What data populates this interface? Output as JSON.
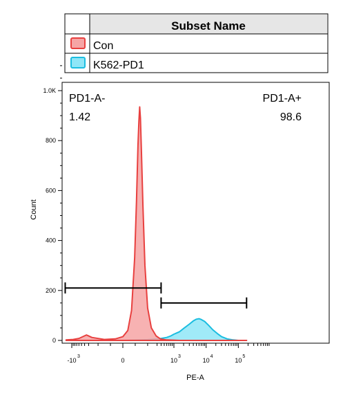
{
  "legend": {
    "header": "Subset Name",
    "items": [
      {
        "label": "Con",
        "stroke": "#e8403f",
        "fill": "#f6a5a5"
      },
      {
        "label": "K562-PD1",
        "stroke": "#1bbde0",
        "fill": "#8fe6f7"
      }
    ]
  },
  "gates": {
    "left": {
      "name": "PD1-A-",
      "value": "1.42"
    },
    "right": {
      "name": "PD1-A+",
      "value": "98.6"
    }
  },
  "chart_data": {
    "type": "area",
    "xlabel": "PE-A",
    "ylabel": "Count",
    "ylim": [
      0,
      1100
    ],
    "y_ticks": [
      {
        "value": 0,
        "label": "0"
      },
      {
        "value": 200,
        "label": "200"
      },
      {
        "value": 400,
        "label": "400"
      },
      {
        "value": 600,
        "label": "600"
      },
      {
        "value": 800,
        "label": "800"
      },
      {
        "value": 1000,
        "label": "1.0K"
      }
    ],
    "x_scale": "biexponential",
    "x_ticks": [
      {
        "value": -1000,
        "base": "-10",
        "exp": "3"
      },
      {
        "value": 0,
        "base": "0",
        "exp": ""
      },
      {
        "value": 1000,
        "base": "10",
        "exp": "3"
      },
      {
        "value": 10000,
        "base": "10",
        "exp": "4"
      },
      {
        "value": 100000,
        "base": "10",
        "exp": "5"
      }
    ],
    "series": [
      {
        "name": "Con",
        "stroke": "#e8403f",
        "fill": "#f6a5a5",
        "points": [
          [
            -1500,
            2
          ],
          [
            -900,
            4
          ],
          [
            -600,
            8
          ],
          [
            -350,
            22
          ],
          [
            -250,
            12
          ],
          [
            -150,
            4
          ],
          [
            -60,
            6
          ],
          [
            0,
            15
          ],
          [
            40,
            40
          ],
          [
            70,
            120
          ],
          [
            95,
            330
          ],
          [
            110,
            560
          ],
          [
            122,
            780
          ],
          [
            130,
            880
          ],
          [
            136,
            935
          ],
          [
            142,
            890
          ],
          [
            150,
            760
          ],
          [
            162,
            540
          ],
          [
            178,
            300
          ],
          [
            200,
            130
          ],
          [
            230,
            50
          ],
          [
            280,
            18
          ],
          [
            380,
            6
          ],
          [
            600,
            2
          ],
          [
            1500,
            0
          ],
          [
            180000,
            0
          ]
        ]
      },
      {
        "name": "K562-PD1",
        "stroke": "#1bbde0",
        "fill": "#8fe6f7",
        "points": [
          [
            -1500,
            0
          ],
          [
            0,
            0
          ],
          [
            200,
            3
          ],
          [
            400,
            8
          ],
          [
            600,
            12
          ],
          [
            800,
            18
          ],
          [
            1000,
            25
          ],
          [
            1500,
            35
          ],
          [
            2000,
            48
          ],
          [
            3000,
            65
          ],
          [
            4000,
            78
          ],
          [
            5000,
            85
          ],
          [
            6000,
            87
          ],
          [
            7000,
            84
          ],
          [
            9000,
            76
          ],
          [
            12000,
            60
          ],
          [
            16000,
            43
          ],
          [
            22000,
            28
          ],
          [
            30000,
            15
          ],
          [
            45000,
            6
          ],
          [
            70000,
            2
          ],
          [
            100000,
            0
          ],
          [
            180000,
            0
          ]
        ]
      }
    ],
    "gates": [
      {
        "name": "PD1-A-",
        "range": [
          -1600,
          400
        ],
        "y": 210
      },
      {
        "name": "PD1-A+",
        "range": [
          400,
          180000
        ],
        "y": 150
      }
    ]
  }
}
